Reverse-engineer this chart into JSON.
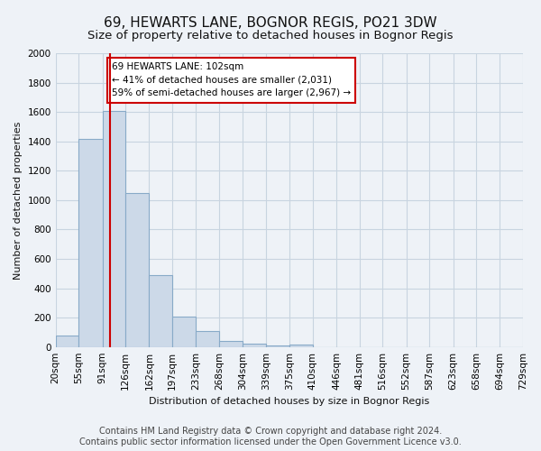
{
  "title": "69, HEWARTS LANE, BOGNOR REGIS, PO21 3DW",
  "subtitle": "Size of property relative to detached houses in Bognor Regis",
  "xlabel": "Distribution of detached houses by size in Bognor Regis",
  "ylabel": "Number of detached properties",
  "bar_color": "#ccd9e8",
  "bar_edge_color": "#88aac8",
  "vline_x": 102,
  "vline_color": "#cc0000",
  "annotation_line1": "69 HEWARTS LANE: 102sqm",
  "annotation_line2": "← 41% of detached houses are smaller (2,031)",
  "annotation_line3": "59% of semi-detached houses are larger (2,967) →",
  "annotation_box_color": "#ffffff",
  "annotation_box_edge": "#cc0000",
  "bin_edges": [
    20,
    55,
    91,
    126,
    162,
    197,
    233,
    268,
    304,
    339,
    375,
    410,
    446,
    481,
    516,
    552,
    587,
    623,
    658,
    694,
    729
  ],
  "bin_counts": [
    80,
    1415,
    1610,
    1050,
    490,
    205,
    110,
    40,
    20,
    10,
    15,
    0,
    0,
    0,
    0,
    0,
    0,
    0,
    0,
    0
  ],
  "ylim": [
    0,
    2000
  ],
  "yticks": [
    0,
    200,
    400,
    600,
    800,
    1000,
    1200,
    1400,
    1600,
    1800,
    2000
  ],
  "footer_text": "Contains HM Land Registry data © Crown copyright and database right 2024.\nContains public sector information licensed under the Open Government Licence v3.0.",
  "bg_color": "#eef2f7",
  "plot_bg_color": "#eef2f7",
  "grid_color": "#c8d4e0",
  "title_fontsize": 11,
  "subtitle_fontsize": 9.5,
  "tick_label_fontsize": 7.5,
  "footer_fontsize": 7
}
